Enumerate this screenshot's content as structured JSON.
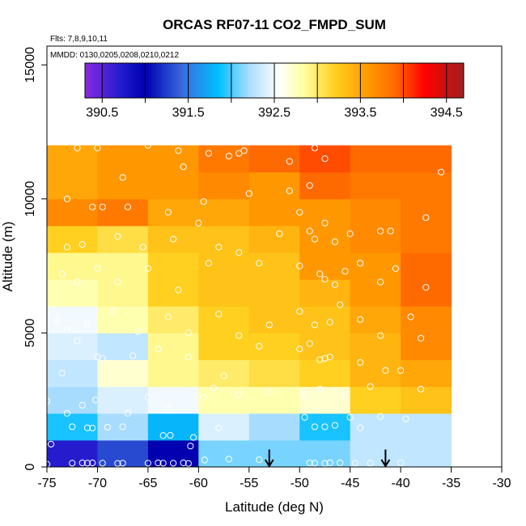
{
  "chart_data": {
    "type": "heatmap",
    "title": "ORCAS RF07-11 CO2_FMPD_SUM",
    "flights_note": "Flts: 7,8,9,10,11",
    "dates_note": "MMDD: 0130,0205,0208,0210,0212",
    "xlabel": "Latitude (deg N)",
    "ylabel": "Altitude (m)",
    "xlim": [
      -75,
      -30
    ],
    "ylim": [
      0,
      15700
    ],
    "x_ticks": [
      -75,
      -70,
      -65,
      -60,
      -55,
      -50,
      -45,
      -40,
      -35,
      -30
    ],
    "x_tick_labels": [
      "-75",
      "-70",
      "-65",
      "-60",
      "-55",
      "-50",
      "-45",
      "-40",
      "-35",
      "-30"
    ],
    "y_ticks": [
      0,
      5000,
      10000,
      15000
    ],
    "y_tick_labels": [
      "0",
      "5000",
      "10000",
      "15000"
    ],
    "colorbar": {
      "min": 390.3,
      "max": 394.7,
      "ticks": [
        390.5,
        391.5,
        392.5,
        393.5,
        394.5
      ],
      "tick_labels": [
        "390.5",
        "391.5",
        "392.5",
        "393.5",
        "394.5"
      ],
      "stops": [
        {
          "v": 390.3,
          "c": "#8a2be2"
        },
        {
          "v": 390.75,
          "c": "#1a1acc"
        },
        {
          "v": 391.0,
          "c": "#0000b0"
        },
        {
          "v": 391.45,
          "c": "#3a6fe0"
        },
        {
          "v": 391.85,
          "c": "#00bfff"
        },
        {
          "v": 392.2,
          "c": "#a8dcff"
        },
        {
          "v": 392.55,
          "c": "#ffffff"
        },
        {
          "v": 392.85,
          "c": "#ffffa0"
        },
        {
          "v": 393.2,
          "c": "#ffd020"
        },
        {
          "v": 393.6,
          "c": "#ff9800"
        },
        {
          "v": 393.9,
          "c": "#ff6a00"
        },
        {
          "v": 394.25,
          "c": "#ff0000"
        },
        {
          "v": 394.7,
          "c": "#a02020"
        }
      ]
    },
    "lat_bins": [
      -75,
      -70,
      -65,
      -60,
      -55,
      -50,
      -45,
      -40,
      -35
    ],
    "alt_bins": [
      0,
      1000,
      2000,
      3000,
      4000,
      5000,
      6000,
      7000,
      8000,
      9000,
      10000,
      11000,
      12000
    ],
    "values": [
      [
        390.7,
        391.3,
        391.0,
        392.1,
        392.1,
        392.1,
        392.3,
        392.3
      ],
      [
        391.9,
        392.2,
        391.8,
        392.4,
        392.2,
        391.9,
        392.3,
        392.3
      ],
      [
        392.2,
        392.4,
        392.5,
        392.8,
        392.8,
        392.7,
        393.2,
        393.3
      ],
      [
        392.3,
        392.7,
        392.9,
        393.0,
        393.1,
        393.2,
        393.4,
        393.5
      ],
      [
        392.4,
        392.3,
        392.9,
        393.2,
        393.2,
        393.3,
        393.4,
        393.7
      ],
      [
        392.5,
        392.8,
        393.0,
        393.2,
        393.3,
        393.3,
        393.5,
        393.7
      ],
      [
        392.8,
        392.9,
        393.2,
        393.3,
        393.3,
        393.4,
        393.6,
        393.9
      ],
      [
        392.9,
        392.9,
        393.2,
        393.3,
        393.3,
        393.6,
        393.6,
        393.9
      ],
      [
        393.2,
        393.1,
        393.3,
        393.3,
        393.4,
        393.6,
        393.7,
        393.8
      ],
      [
        393.7,
        393.8,
        393.5,
        393.5,
        393.6,
        393.6,
        393.7,
        393.8
      ],
      [
        393.5,
        393.6,
        393.6,
        393.7,
        393.6,
        393.9,
        393.8,
        393.8
      ],
      [
        393.5,
        393.6,
        393.6,
        393.8,
        393.9,
        394.0,
        393.9,
        393.9
      ]
    ],
    "observations": [
      [
        -75,
        100
      ],
      [
        -74.6,
        850
      ],
      [
        -75,
        2450
      ],
      [
        -72.5,
        140
      ],
      [
        -71.5,
        150
      ],
      [
        -71,
        140
      ],
      [
        -70.5,
        150
      ],
      [
        -69.5,
        140
      ],
      [
        -68,
        130
      ],
      [
        -67.5,
        140
      ],
      [
        -65,
        140
      ],
      [
        -64,
        150
      ],
      [
        -63.5,
        140
      ],
      [
        -62.5,
        140
      ],
      [
        -61.5,
        150
      ],
      [
        -61,
        130
      ],
      [
        -60.8,
        780
      ],
      [
        -59.4,
        260
      ],
      [
        -57,
        290
      ],
      [
        -54,
        270
      ],
      [
        -49,
        150
      ],
      [
        -48.5,
        140
      ],
      [
        -47.5,
        130
      ],
      [
        -47,
        150
      ],
      [
        -46,
        150
      ],
      [
        -44.5,
        140
      ],
      [
        -43,
        140
      ],
      [
        -40,
        150
      ],
      [
        -72.5,
        1500
      ],
      [
        -71,
        1460
      ],
      [
        -70.5,
        1450
      ],
      [
        -69,
        1480
      ],
      [
        -67.5,
        1500
      ],
      [
        -63.5,
        1170
      ],
      [
        -62.8,
        1180
      ],
      [
        -60.5,
        1100
      ],
      [
        -58,
        1450
      ],
      [
        -49.5,
        1850
      ],
      [
        -48.5,
        1500
      ],
      [
        -47.5,
        1500
      ],
      [
        -46.5,
        1550
      ],
      [
        -45,
        1850
      ],
      [
        -44,
        1460
      ],
      [
        -42,
        1880
      ],
      [
        -39.5,
        1800
      ],
      [
        -73,
        2000
      ],
      [
        -71.5,
        2300
      ],
      [
        -70.2,
        2500
      ],
      [
        -67,
        2000
      ],
      [
        -65,
        2600
      ],
      [
        -63,
        2150
      ],
      [
        -59.5,
        2600
      ],
      [
        -58.5,
        2950
      ],
      [
        -56,
        2700
      ],
      [
        -53,
        2800
      ],
      [
        -49.5,
        2700
      ],
      [
        -48,
        2900
      ],
      [
        -45.5,
        2700
      ],
      [
        -43,
        3000
      ],
      [
        -41.5,
        3600
      ],
      [
        -38,
        2900
      ],
      [
        -73.5,
        3500
      ],
      [
        -72,
        4700
      ],
      [
        -70,
        4100
      ],
      [
        -69.5,
        4050
      ],
      [
        -66.5,
        4150
      ],
      [
        -64,
        4400
      ],
      [
        -61,
        4100
      ],
      [
        -57.5,
        3400
      ],
      [
        -54,
        4500
      ],
      [
        -50,
        4400
      ],
      [
        -49,
        4600
      ],
      [
        -48,
        4000
      ],
      [
        -47.5,
        4050
      ],
      [
        -47,
        4100
      ],
      [
        -44,
        3900
      ],
      [
        -40,
        3600
      ],
      [
        -74,
        5500
      ],
      [
        -73,
        5100
      ],
      [
        -71,
        5300
      ],
      [
        -68.5,
        5800
      ],
      [
        -66,
        5050
      ],
      [
        -63,
        5600
      ],
      [
        -61,
        5000
      ],
      [
        -58,
        5700
      ],
      [
        -56,
        4900
      ],
      [
        -53,
        5300
      ],
      [
        -50,
        5800
      ],
      [
        -48.5,
        5300
      ],
      [
        -47,
        5400
      ],
      [
        -46,
        6050
      ],
      [
        -44,
        5500
      ],
      [
        -42,
        4900
      ],
      [
        -39,
        5600
      ],
      [
        -38,
        4800
      ],
      [
        -73.5,
        7200
      ],
      [
        -72,
        6900
      ],
      [
        -70,
        7400
      ],
      [
        -68,
        6900
      ],
      [
        -65,
        7400
      ],
      [
        -62,
        6600
      ],
      [
        -59,
        7600
      ],
      [
        -54,
        7600
      ],
      [
        -50,
        7500
      ],
      [
        -48,
        7200
      ],
      [
        -47.5,
        7000
      ],
      [
        -46.5,
        6800
      ],
      [
        -45.5,
        7300
      ],
      [
        -44,
        7600
      ],
      [
        -42,
        6900
      ],
      [
        -40.5,
        7400
      ],
      [
        -37.5,
        6700
      ],
      [
        -73,
        8200
      ],
      [
        -71.5,
        8300
      ],
      [
        -68,
        8600
      ],
      [
        -65.5,
        8200
      ],
      [
        -62.5,
        8500
      ],
      [
        -60,
        9100
      ],
      [
        -58,
        8200
      ],
      [
        -56,
        8000
      ],
      [
        -52,
        8700
      ],
      [
        -50,
        9500
      ],
      [
        -49,
        8800
      ],
      [
        -48.5,
        8500
      ],
      [
        -47.5,
        9100
      ],
      [
        -46.5,
        8400
      ],
      [
        -45,
        8700
      ],
      [
        -42,
        8800
      ],
      [
        -41,
        8800
      ],
      [
        -37.5,
        9300
      ],
      [
        -73,
        10000
      ],
      [
        -70.5,
        9700
      ],
      [
        -69.5,
        9700
      ],
      [
        -67,
        9700
      ],
      [
        -63,
        9500
      ],
      [
        -59.5,
        9900
      ],
      [
        -55,
        10200
      ],
      [
        -51,
        10300
      ],
      [
        -49,
        10500
      ],
      [
        -72,
        11900
      ],
      [
        -70,
        11900
      ],
      [
        -67.5,
        10800
      ],
      [
        -65,
        12000
      ],
      [
        -62,
        11800
      ],
      [
        -61.5,
        11200
      ],
      [
        -59,
        11700
      ],
      [
        -57,
        11600
      ],
      [
        -56,
        11700
      ],
      [
        -55.5,
        11800
      ],
      [
        -51,
        11400
      ],
      [
        -48.5,
        11900
      ],
      [
        -47.5,
        11500
      ],
      [
        -36,
        11000
      ]
    ],
    "arrows": [
      {
        "lat": -53,
        "alt_top": 650,
        "alt_bottom": 0
      },
      {
        "lat": -41.5,
        "alt_top": 650,
        "alt_bottom": 0
      }
    ]
  }
}
